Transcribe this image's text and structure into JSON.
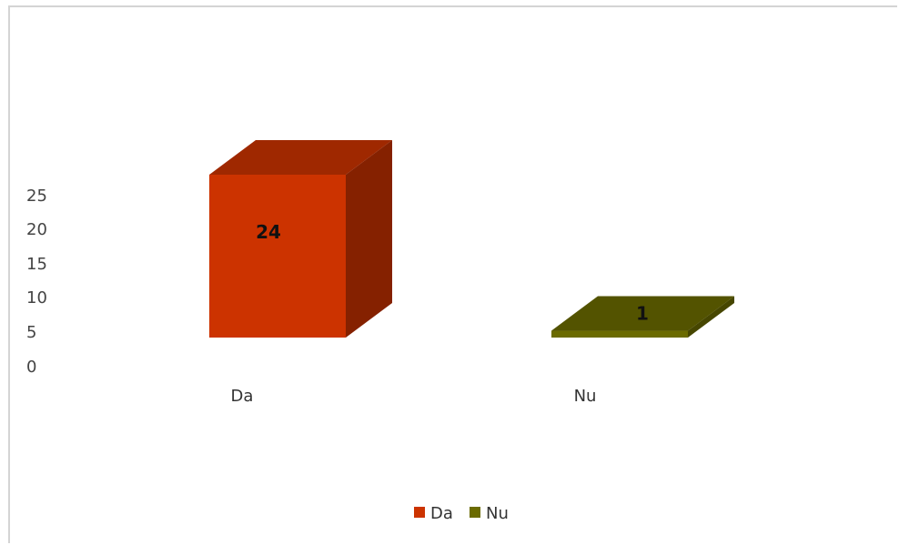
{
  "chart_data": {
    "type": "bar",
    "categories": [
      "Da",
      "Nu"
    ],
    "values": [
      24,
      1
    ],
    "data_labels": [
      "24",
      "1"
    ],
    "ylim": [
      0,
      25
    ],
    "yticks": [
      "0",
      "5",
      "10",
      "15",
      "20",
      "25"
    ],
    "grid": false,
    "legend": {
      "position": "bottom",
      "entries": [
        "Da",
        "Nu"
      ]
    },
    "colors": [
      "#cc3300",
      "#6b6b00"
    ],
    "style": "3d-box"
  }
}
